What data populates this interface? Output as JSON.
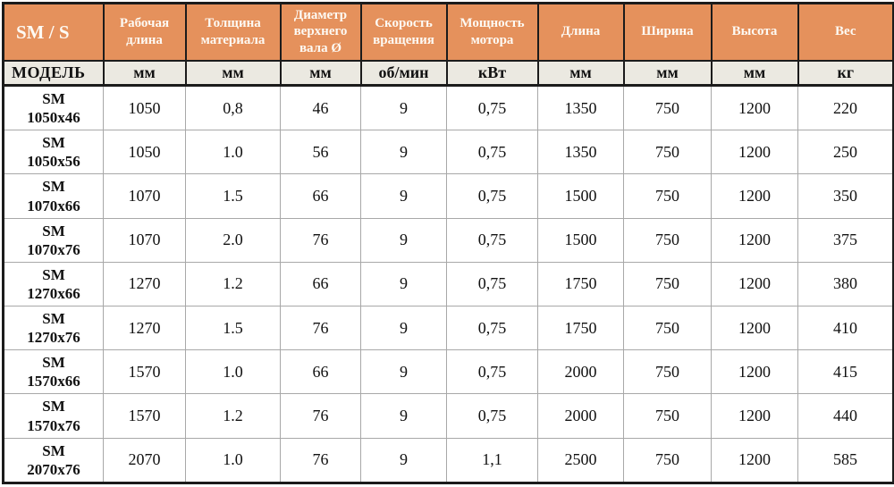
{
  "table": {
    "corner": {
      "title": "SM / S",
      "subtitle": "МОДЕЛЬ"
    },
    "columns": [
      {
        "label": "Рабочая длина",
        "unit": "мм"
      },
      {
        "label": "Толщина материала",
        "unit": "мм"
      },
      {
        "label": "Диаметр верхнего вала Ø",
        "unit": "мм"
      },
      {
        "label": "Скорость вращения",
        "unit": "об/мин"
      },
      {
        "label": "Мощность мотора",
        "unit": "кВт"
      },
      {
        "label": "Длина",
        "unit": "мм"
      },
      {
        "label": "Ширина",
        "unit": "мм"
      },
      {
        "label": "Высота",
        "unit": "мм"
      },
      {
        "label": "Вес",
        "unit": "кг"
      }
    ],
    "rows": [
      {
        "model": "SM 1050x46",
        "values": [
          "1050",
          "0,8",
          "46",
          "9",
          "0,75",
          "1350",
          "750",
          "1200",
          "220"
        ]
      },
      {
        "model": "SM 1050x56",
        "values": [
          "1050",
          "1.0",
          "56",
          "9",
          "0,75",
          "1350",
          "750",
          "1200",
          "250"
        ]
      },
      {
        "model": "SM 1070x66",
        "values": [
          "1070",
          "1.5",
          "66",
          "9",
          "0,75",
          "1500",
          "750",
          "1200",
          "350"
        ]
      },
      {
        "model": "SM 1070x76",
        "values": [
          "1070",
          "2.0",
          "76",
          "9",
          "0,75",
          "1500",
          "750",
          "1200",
          "375"
        ]
      },
      {
        "model": "SM 1270x66",
        "values": [
          "1270",
          "1.2",
          "66",
          "9",
          "0,75",
          "1750",
          "750",
          "1200",
          "380"
        ]
      },
      {
        "model": "SM 1270x76",
        "values": [
          "1270",
          "1.5",
          "76",
          "9",
          "0,75",
          "1750",
          "750",
          "1200",
          "410"
        ]
      },
      {
        "model": "SM 1570x66",
        "values": [
          "1570",
          "1.0",
          "66",
          "9",
          "0,75",
          "2000",
          "750",
          "1200",
          "415"
        ]
      },
      {
        "model": "SM 1570x76",
        "values": [
          "1570",
          "1.2",
          "76",
          "9",
          "0,75",
          "2000",
          "750",
          "1200",
          "440"
        ]
      },
      {
        "model": "SM 2070x76",
        "values": [
          "2070",
          "1.0",
          "76",
          "9",
          "1,1",
          "2500",
          "750",
          "1200",
          "585"
        ]
      }
    ]
  },
  "colors": {
    "header_bg": "#e5915c",
    "units_bg": "#ebe9e1",
    "header_text": "#fdfaf4",
    "body_text": "#111111",
    "heavy_border": "#1b1b1b",
    "light_border": "#a8a8a8"
  }
}
